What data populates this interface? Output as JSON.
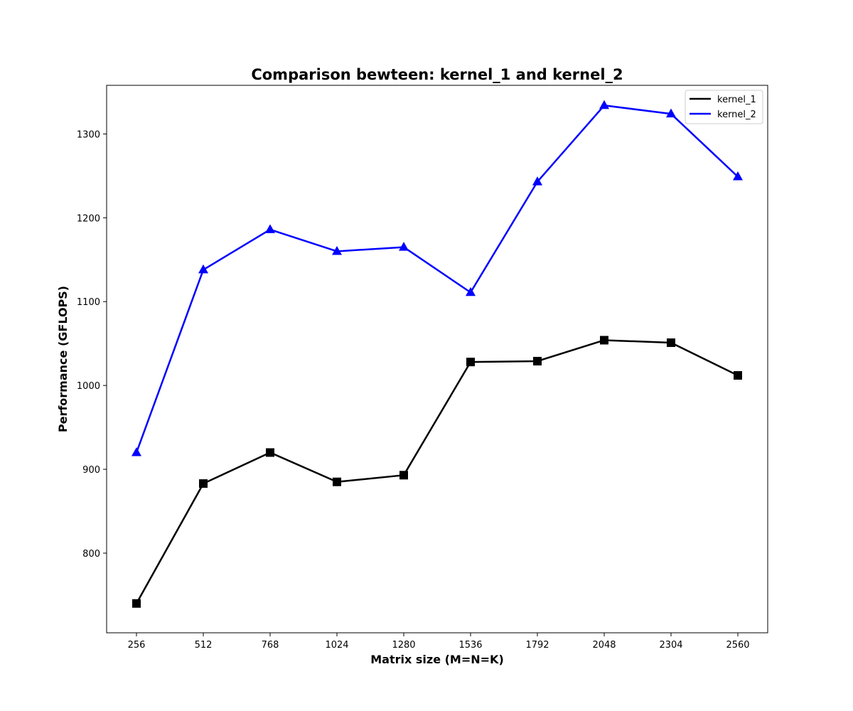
{
  "chart_data": {
    "type": "line",
    "title": "Comparison bewteen: kernel_1 and kernel_2",
    "xlabel": "Matrix size (M=N=K)",
    "ylabel": "Performance (GFLOPS)",
    "categories": [
      "256",
      "512",
      "768",
      "1024",
      "1280",
      "1536",
      "1792",
      "2048",
      "2304",
      "2560"
    ],
    "yticks": [
      "800",
      "900",
      "1000",
      "1100",
      "1200",
      "1300"
    ],
    "ylim": [
      705,
      1358
    ],
    "grid": false,
    "legend_position": "top-right",
    "series": [
      {
        "name": "kernel_1",
        "color": "#000000",
        "marker": "square",
        "values": [
          740,
          883,
          920,
          885,
          893,
          1028,
          1029,
          1054,
          1051,
          1012
        ]
      },
      {
        "name": "kernel_2",
        "color": "#0000ff",
        "marker": "triangle",
        "values": [
          920,
          1138,
          1186,
          1160,
          1165,
          1111,
          1243,
          1334,
          1324,
          1249
        ]
      }
    ]
  }
}
